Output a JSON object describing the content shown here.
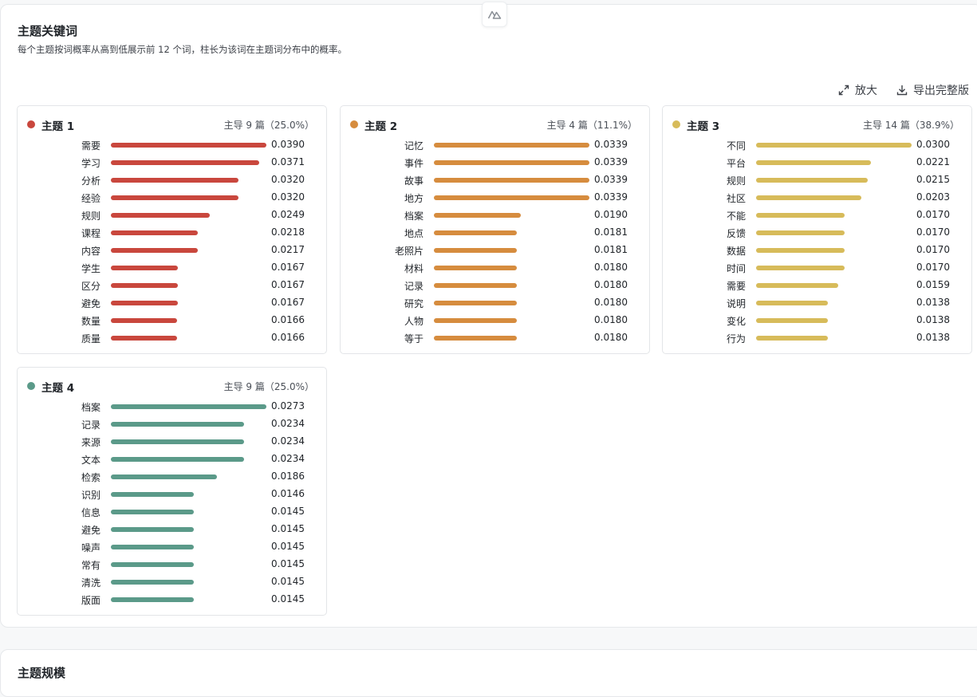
{
  "section": {
    "title": "主题关键词",
    "subtitle": "每个主题按词概率从高到低展示前 12 个词，柱长为该词在主题词分布中的概率。"
  },
  "toolbar": {
    "zoom_label": "放大",
    "export_label": "导出完整版"
  },
  "next_section": {
    "title": "主题规模"
  },
  "colors": {
    "topic1": "#c9473d",
    "topic2": "#d68c3e",
    "topic3": "#d7bb5a",
    "topic4": "#5b9a89"
  },
  "chart_data": [
    {
      "type": "bar",
      "orientation": "horizontal",
      "title": "主题 1",
      "meta": "主导 9 篇（25.0%）",
      "color": "#c9473d",
      "categories": [
        "需要",
        "学习",
        "分析",
        "经验",
        "规则",
        "课程",
        "内容",
        "学生",
        "区分",
        "避免",
        "数量",
        "质量"
      ],
      "values": [
        0.039,
        0.0371,
        0.032,
        0.032,
        0.0249,
        0.0218,
        0.0217,
        0.0167,
        0.0167,
        0.0167,
        0.0166,
        0.0166
      ],
      "labels": [
        "0.0390",
        "0.0371",
        "0.0320",
        "0.0320",
        "0.0249",
        "0.0218",
        "0.0217",
        "0.0167",
        "0.0167",
        "0.0167",
        "0.0166",
        "0.0166"
      ]
    },
    {
      "type": "bar",
      "orientation": "horizontal",
      "title": "主题 2",
      "meta": "主导 4 篇（11.1%）",
      "color": "#d68c3e",
      "categories": [
        "记忆",
        "事件",
        "故事",
        "地方",
        "档案",
        "地点",
        "老照片",
        "材料",
        "记录",
        "研究",
        "人物",
        "等于"
      ],
      "values": [
        0.0339,
        0.0339,
        0.0339,
        0.0339,
        0.019,
        0.0181,
        0.0181,
        0.018,
        0.018,
        0.018,
        0.018,
        0.018
      ],
      "labels": [
        "0.0339",
        "0.0339",
        "0.0339",
        "0.0339",
        "0.0190",
        "0.0181",
        "0.0181",
        "0.0180",
        "0.0180",
        "0.0180",
        "0.0180",
        "0.0180"
      ]
    },
    {
      "type": "bar",
      "orientation": "horizontal",
      "title": "主题 3",
      "meta": "主导 14 篇（38.9%）",
      "color": "#d7bb5a",
      "categories": [
        "不同",
        "平台",
        "规则",
        "社区",
        "不能",
        "反馈",
        "数据",
        "时间",
        "需要",
        "说明",
        "变化",
        "行为"
      ],
      "values": [
        0.03,
        0.0221,
        0.0215,
        0.0203,
        0.017,
        0.017,
        0.017,
        0.017,
        0.0159,
        0.0138,
        0.0138,
        0.0138
      ],
      "labels": [
        "0.0300",
        "0.0221",
        "0.0215",
        "0.0203",
        "0.0170",
        "0.0170",
        "0.0170",
        "0.0170",
        "0.0159",
        "0.0138",
        "0.0138",
        "0.0138"
      ]
    },
    {
      "type": "bar",
      "orientation": "horizontal",
      "title": "主题 4",
      "meta": "主导 9 篇（25.0%）",
      "color": "#5b9a89",
      "categories": [
        "档案",
        "记录",
        "来源",
        "文本",
        "检索",
        "识别",
        "信息",
        "避免",
        "噪声",
        "常有",
        "清洗",
        "版面"
      ],
      "values": [
        0.0273,
        0.0234,
        0.0234,
        0.0234,
        0.0186,
        0.0146,
        0.0145,
        0.0145,
        0.0145,
        0.0145,
        0.0145,
        0.0145
      ],
      "labels": [
        "0.0273",
        "0.0234",
        "0.0234",
        "0.0234",
        "0.0186",
        "0.0146",
        "0.0145",
        "0.0145",
        "0.0145",
        "0.0145",
        "0.0145",
        "0.0145"
      ]
    }
  ]
}
